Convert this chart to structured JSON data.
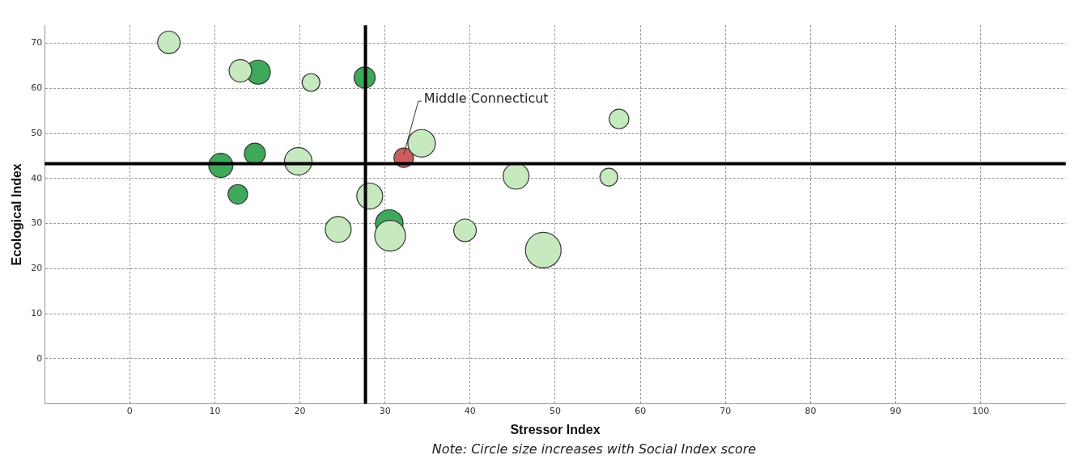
{
  "chart_data": {
    "type": "bubble",
    "xlabel": "Stressor Index",
    "ylabel": "Ecological Index",
    "xlim": [
      -10,
      110
    ],
    "xticks": [
      0,
      10,
      20,
      30,
      40,
      50,
      60,
      70,
      80,
      90,
      100
    ],
    "ylim": [
      -10,
      74
    ],
    "yticks": [
      0,
      10,
      20,
      30,
      40,
      50,
      60,
      70
    ],
    "grid": true,
    "legend": false,
    "series": [
      {
        "color": "#c6e9c0",
        "x": [
          4.6,
          13.0,
          21.3,
          34.3,
          57.5,
          19.8,
          28.2,
          45.4,
          56.3,
          24.5,
          30.6,
          39.4,
          48.6
        ],
        "values": [
          70.2,
          63.9,
          61.3,
          47.8,
          53.2,
          43.8,
          36.1,
          40.5,
          40.3,
          28.7,
          27.3,
          28.5,
          24.1
        ],
        "sizes": [
          0.4,
          0.4,
          0.25,
          0.6,
          0.3,
          0.6,
          0.53,
          0.53,
          0.25,
          0.53,
          0.75,
          0.4,
          1
        ]
      },
      {
        "color": "#3fa95b",
        "x": [
          15.1,
          27.6,
          10.7,
          14.7,
          12.7,
          30.5
        ],
        "values": [
          63.6,
          62.4,
          42.9,
          45.5,
          36.5,
          30.0
        ],
        "sizes": [
          0.46,
          0.35,
          0.46,
          0.35,
          0.3,
          0.6
        ]
      },
      {
        "color": "#cd5c5c",
        "x": [
          32.2
        ],
        "values": [
          44.6
        ],
        "sizes": [
          0.3
        ]
      }
    ],
    "ref_lines": [
      {
        "axis": "x",
        "value": 27.7
      },
      {
        "axis": "y",
        "value": 43.3
      }
    ],
    "annotations": [
      {
        "text": "Middle Connecticut",
        "x": 32.2,
        "y": 44.6
      },
      "Note: Circle size increases with Social Index score"
    ]
  }
}
